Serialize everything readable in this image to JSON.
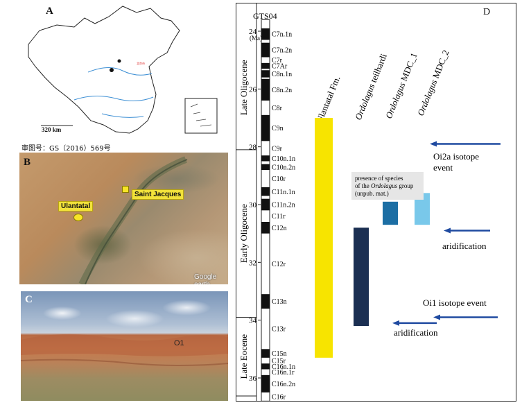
{
  "panel_a": {
    "label": "A",
    "scale_label": "320 km",
    "approval_number": "审图号：GS（2016）569号",
    "map_marker_text": "北京市"
  },
  "panel_b": {
    "label": "B",
    "places": {
      "ulantatal": "Ulantatal",
      "saint_jacques": "Saint Jacques"
    },
    "imagery_credit": "Google earth"
  },
  "panel_c": {
    "label": "C",
    "layer_label": "O1"
  },
  "panel_d": {
    "label": "D",
    "timescale_title": "GTS04",
    "unit_label": "(Ma)",
    "epochs": [
      {
        "name": "Late Oligocene",
        "from_ma": 23.6,
        "to_ma": 28.1
      },
      {
        "name": "Early Oligocene",
        "from_ma": 28.1,
        "to_ma": 33.9
      },
      {
        "name": "Late Eocene",
        "from_ma": 33.9,
        "to_ma": 36.8
      }
    ],
    "column_headers": [
      {
        "text": "Ulantatal Fm.",
        "italic_prefix": ""
      },
      {
        "text": " teilhardi",
        "italic_prefix": "Ordolagus"
      },
      {
        "text": " MDC_1",
        "italic_prefix": "Ordolagus"
      },
      {
        "text": " MDC_2",
        "italic_prefix": "Ordolagus"
      }
    ],
    "note": {
      "line1": "presence of species",
      "line2_prefix": "of the ",
      "line2_italic": "Ordolagus",
      "line2_suffix": " group",
      "line3": "(unpub. mat.)"
    },
    "events": {
      "oi2a_line1": "Oi2a isotope",
      "oi2a_line2": "event",
      "aridification_upper": "aridification",
      "oi1": "Oi1 isotope event",
      "aridification_lower": "aridification"
    },
    "colors": {
      "ulantatal_fm": "#f7e400",
      "ordolagus_teilhardi": "#1b2f52",
      "ordolagus_mdc_1": "#1c6ea4",
      "ordolagus_mdc_2": "#79c8ea",
      "arrow": "#1f4aa0",
      "note_background": "#e6e6e6"
    }
  },
  "chart_data": {
    "type": "table",
    "axis": {
      "label": "(Ma)",
      "ticks": [
        24,
        26,
        28,
        30,
        32,
        34,
        36
      ],
      "range": [
        23.6,
        36.8
      ],
      "direction": "down"
    },
    "chrons": [
      {
        "name": "C7n.1n",
        "polarity": "normal",
        "from": 23.9,
        "to": 24.3
      },
      {
        "name": "C7n.2n",
        "polarity": "normal",
        "from": 24.4,
        "to": 24.9
      },
      {
        "name": "C7r",
        "polarity": "reversed",
        "from": 24.9,
        "to": 25.1
      },
      {
        "name": "C7Ar",
        "polarity": "normal",
        "from": 25.1,
        "to": 25.3
      },
      {
        "name": "C8n.1n",
        "polarity": "normal",
        "from": 25.35,
        "to": 25.6
      },
      {
        "name": "C8n.2n",
        "polarity": "normal",
        "from": 25.65,
        "to": 26.4
      },
      {
        "name": "C8r",
        "polarity": "reversed",
        "from": 26.4,
        "to": 26.9
      },
      {
        "name": "C9n",
        "polarity": "normal",
        "from": 26.9,
        "to": 27.8
      },
      {
        "name": "C9r",
        "polarity": "reversed",
        "from": 27.8,
        "to": 28.3
      },
      {
        "name": "C10n.1n",
        "polarity": "normal",
        "from": 28.3,
        "to": 28.5
      },
      {
        "name": "C10n.2n",
        "polarity": "normal",
        "from": 28.6,
        "to": 28.8
      },
      {
        "name": "C10r",
        "polarity": "reversed",
        "from": 28.8,
        "to": 29.4
      },
      {
        "name": "C11n.1n",
        "polarity": "normal",
        "from": 29.4,
        "to": 29.7
      },
      {
        "name": "C11n.2n",
        "polarity": "normal",
        "from": 29.8,
        "to": 30.2
      },
      {
        "name": "C11r",
        "polarity": "reversed",
        "from": 30.2,
        "to": 30.6
      },
      {
        "name": "C12n",
        "polarity": "normal",
        "from": 30.6,
        "to": 31.0
      },
      {
        "name": "C12r",
        "polarity": "reversed",
        "from": 31.0,
        "to": 33.1
      },
      {
        "name": "C13n",
        "polarity": "normal",
        "from": 33.1,
        "to": 33.6
      },
      {
        "name": "C13r",
        "polarity": "reversed",
        "from": 33.6,
        "to": 35.0
      },
      {
        "name": "C15n",
        "polarity": "normal",
        "from": 35.0,
        "to": 35.3
      },
      {
        "name": "C15r",
        "polarity": "reversed",
        "from": 35.3,
        "to": 35.5
      },
      {
        "name": "C16n.1n",
        "polarity": "normal",
        "from": 35.5,
        "to": 35.7
      },
      {
        "name": "C16n.1r",
        "polarity": "reversed",
        "from": 35.7,
        "to": 35.9
      },
      {
        "name": "C16n.2n",
        "polarity": "normal",
        "from": 35.9,
        "to": 36.5
      },
      {
        "name": "C16r",
        "polarity": "reversed",
        "from": 36.5,
        "to": 36.8
      }
    ],
    "ranges": [
      {
        "name": "Ulantatal Fm.",
        "from": 27.0,
        "to": 35.3
      },
      {
        "name": "Ordolagus teilhardi",
        "from": 30.8,
        "to": 34.2
      },
      {
        "name": "Ordolagus MDC_1",
        "from": 29.9,
        "to": 30.7
      },
      {
        "name": "Ordolagus MDC_2",
        "from": 29.6,
        "to": 30.7
      }
    ],
    "events": [
      {
        "name": "Oi2a isotope event",
        "age": 27.9
      },
      {
        "name": "aridification",
        "age": 30.9
      },
      {
        "name": "Oi1 isotope event",
        "age": 33.9
      },
      {
        "name": "aridification",
        "age": 34.1
      }
    ]
  }
}
